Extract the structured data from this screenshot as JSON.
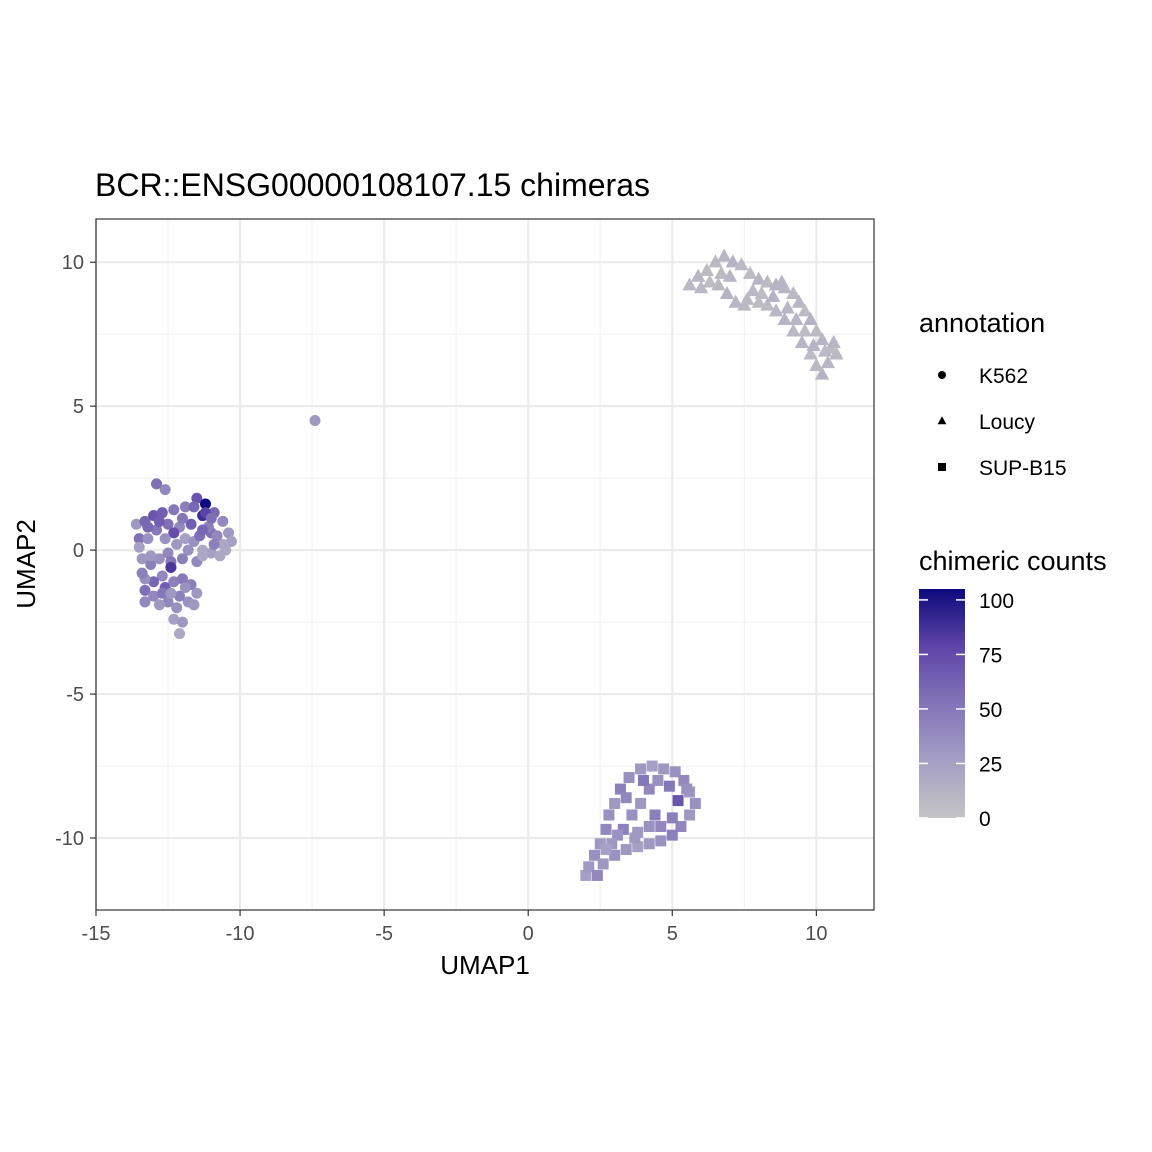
{
  "chart_data": {
    "type": "scatter",
    "title": "BCR::ENSG00000108107.15 chimeras",
    "xlabel": "UMAP1",
    "ylabel": "UMAP2",
    "xlim": [
      -15,
      12
    ],
    "ylim": [
      -12.5,
      11.5
    ],
    "x_ticks": [
      -15,
      -10,
      -5,
      0,
      5,
      10
    ],
    "y_ticks": [
      10,
      5,
      0,
      -5,
      -10
    ],
    "grid": true,
    "legend_position": "right",
    "annotation_legend": {
      "title": "annotation",
      "entries": [
        {
          "label": "K562",
          "shape": "circle"
        },
        {
          "label": "Loucy",
          "shape": "triangle"
        },
        {
          "label": "SUP-B15",
          "shape": "square"
        }
      ]
    },
    "color_legend": {
      "title": "chimeric counts",
      "ticks": [
        100,
        75,
        50,
        25,
        0
      ],
      "range": [
        0,
        105
      ],
      "low_color": "#c4c4c4",
      "high_color": "#0c0a7c"
    },
    "clusters": [
      {
        "annotation": "K562",
        "shape": "circle",
        "count_level": "moderate, up to ~100",
        "points": [
          [
            -13.6,
            0.9
          ],
          [
            -13.5,
            0.4
          ],
          [
            -13.3,
            1.0
          ],
          [
            -13.0,
            1.2
          ],
          [
            -12.7,
            1.3
          ],
          [
            -12.3,
            1.4
          ],
          [
            -11.9,
            1.5
          ],
          [
            -11.5,
            1.8
          ],
          [
            -11.2,
            1.6
          ],
          [
            -10.9,
            1.3
          ],
          [
            -10.6,
            1.0
          ],
          [
            -10.4,
            0.6
          ],
          [
            -10.3,
            0.3
          ],
          [
            -10.6,
            0.2
          ],
          [
            -11.0,
            0.6
          ],
          [
            -11.3,
            1.2
          ],
          [
            -11.7,
            0.9
          ],
          [
            -12.1,
            0.8
          ],
          [
            -12.5,
            0.9
          ],
          [
            -12.9,
            0.7
          ],
          [
            -13.2,
            0.4
          ],
          [
            -13.5,
            0.1
          ],
          [
            -13.4,
            -0.3
          ],
          [
            -13.1,
            -0.5
          ],
          [
            -12.8,
            -0.3
          ],
          [
            -12.5,
            -0.1
          ],
          [
            -12.2,
            0.2
          ],
          [
            -11.9,
            0.4
          ],
          [
            -11.6,
            0.3
          ],
          [
            -11.3,
            0.0
          ],
          [
            -11.0,
            -0.1
          ],
          [
            -10.7,
            -0.2
          ],
          [
            -10.5,
            0.0
          ],
          [
            -11.4,
            0.5
          ],
          [
            -12.0,
            -0.3
          ],
          [
            -12.4,
            -0.6
          ],
          [
            -12.7,
            -0.9
          ],
          [
            -13.0,
            -1.1
          ],
          [
            -13.3,
            -1.0
          ],
          [
            -13.3,
            -1.4
          ],
          [
            -13.0,
            -1.6
          ],
          [
            -12.6,
            -1.3
          ],
          [
            -12.3,
            -1.1
          ],
          [
            -12.0,
            -1.0
          ],
          [
            -11.7,
            -1.2
          ],
          [
            -11.5,
            -1.5
          ],
          [
            -11.8,
            -1.8
          ],
          [
            -12.1,
            -1.6
          ],
          [
            -12.5,
            -1.8
          ],
          [
            -12.8,
            -1.9
          ],
          [
            -12.2,
            -2.0
          ],
          [
            -11.6,
            -1.9
          ],
          [
            -12.3,
            -2.4
          ],
          [
            -12.0,
            -2.5
          ],
          [
            -12.1,
            -2.9
          ],
          [
            -12.9,
            2.3
          ],
          [
            -12.6,
            2.1
          ],
          [
            -11.8,
            0.0
          ],
          [
            -12.4,
            -0.4
          ],
          [
            -13.2,
            0.8
          ],
          [
            -11.1,
            0.8
          ],
          [
            -10.8,
            0.5
          ],
          [
            -12.8,
            1.0
          ],
          [
            -12.3,
            0.6
          ],
          [
            -11.6,
            1.5
          ],
          [
            -11.2,
            1.3
          ],
          [
            -12.4,
            -0.6
          ],
          [
            -13.1,
            -0.2
          ],
          [
            -11.5,
            -0.4
          ],
          [
            -12.7,
            -1.5
          ],
          [
            -11.9,
            -1.3
          ],
          [
            -13.4,
            -0.8
          ],
          [
            -11.0,
            1.1
          ],
          [
            -12.0,
            1.1
          ],
          [
            -12.6,
            0.4
          ],
          [
            -11.3,
            0.7
          ],
          [
            -10.9,
            0.2
          ],
          [
            -13.3,
            -1.8
          ],
          [
            -12.4,
            -1.5
          ],
          [
            -11.3,
            -0.2
          ],
          [
            -7.4,
            4.5
          ]
        ],
        "values": [
          30,
          55,
          60,
          70,
          65,
          50,
          45,
          70,
          105,
          60,
          40,
          30,
          25,
          20,
          55,
          90,
          65,
          40,
          55,
          50,
          35,
          25,
          30,
          45,
          35,
          40,
          30,
          25,
          35,
          20,
          25,
          20,
          20,
          55,
          45,
          75,
          40,
          60,
          35,
          55,
          40,
          65,
          45,
          50,
          45,
          30,
          35,
          45,
          40,
          30,
          35,
          30,
          25,
          30,
          20,
          55,
          40,
          35,
          50,
          60,
          45,
          40,
          65,
          75,
          60,
          80,
          85,
          30,
          40,
          50,
          35,
          45,
          55,
          50,
          35,
          60,
          45,
          40,
          30,
          20,
          30
        ]
      },
      {
        "annotation": "Loucy",
        "shape": "triangle",
        "count_level": "low",
        "points": [
          [
            5.6,
            9.2
          ],
          [
            5.9,
            9.5
          ],
          [
            6.2,
            9.7
          ],
          [
            6.5,
            10.0
          ],
          [
            6.8,
            10.2
          ],
          [
            7.1,
            10.0
          ],
          [
            7.4,
            9.9
          ],
          [
            7.7,
            9.6
          ],
          [
            8.0,
            9.4
          ],
          [
            8.3,
            9.3
          ],
          [
            8.6,
            9.2
          ],
          [
            8.9,
            9.1
          ],
          [
            9.2,
            8.9
          ],
          [
            9.4,
            8.6
          ],
          [
            9.6,
            8.3
          ],
          [
            9.8,
            8.0
          ],
          [
            10.0,
            7.6
          ],
          [
            10.2,
            7.3
          ],
          [
            10.5,
            7.0
          ],
          [
            10.7,
            6.8
          ],
          [
            10.4,
            6.5
          ],
          [
            10.2,
            6.1
          ],
          [
            10.0,
            6.4
          ],
          [
            9.8,
            6.8
          ],
          [
            9.5,
            7.2
          ],
          [
            9.2,
            7.6
          ],
          [
            8.9,
            8.0
          ],
          [
            8.6,
            8.3
          ],
          [
            8.3,
            8.5
          ],
          [
            8.0,
            8.6
          ],
          [
            7.6,
            8.7
          ],
          [
            7.2,
            8.6
          ],
          [
            6.9,
            8.9
          ],
          [
            6.6,
            9.2
          ],
          [
            6.3,
            9.3
          ],
          [
            6.0,
            9.1
          ],
          [
            7.0,
            9.5
          ],
          [
            7.8,
            9.0
          ],
          [
            8.5,
            8.8
          ],
          [
            9.0,
            8.4
          ],
          [
            9.6,
            7.6
          ],
          [
            10.3,
            6.9
          ],
          [
            10.6,
            7.2
          ],
          [
            7.5,
            8.5
          ],
          [
            8.1,
            8.9
          ],
          [
            9.3,
            8.0
          ],
          [
            9.9,
            7.1
          ],
          [
            6.7,
            9.6
          ],
          [
            8.8,
            9.3
          ]
        ],
        "values": [
          8,
          10,
          6,
          8,
          10,
          12,
          8,
          6,
          10,
          8,
          12,
          10,
          8,
          10,
          6,
          12,
          8,
          10,
          6,
          8,
          10,
          12,
          8,
          6,
          10,
          8,
          12,
          10,
          8,
          6,
          8,
          10,
          12,
          8,
          6,
          8,
          10,
          8,
          12,
          10,
          6,
          8,
          10,
          8,
          6,
          10,
          12,
          8,
          10
        ]
      },
      {
        "annotation": "SUP-B15",
        "shape": "square",
        "count_level": "low to moderate",
        "points": [
          [
            2.0,
            -11.3
          ],
          [
            2.1,
            -11.0
          ],
          [
            2.3,
            -10.6
          ],
          [
            2.5,
            -10.2
          ],
          [
            2.7,
            -9.7
          ],
          [
            2.8,
            -9.2
          ],
          [
            3.0,
            -8.8
          ],
          [
            3.2,
            -8.3
          ],
          [
            3.5,
            -7.9
          ],
          [
            3.9,
            -7.6
          ],
          [
            4.3,
            -7.5
          ],
          [
            4.7,
            -7.6
          ],
          [
            5.1,
            -7.7
          ],
          [
            5.4,
            -8.0
          ],
          [
            5.6,
            -8.4
          ],
          [
            5.8,
            -8.8
          ],
          [
            5.6,
            -9.2
          ],
          [
            5.3,
            -9.6
          ],
          [
            5.0,
            -9.9
          ],
          [
            4.6,
            -10.1
          ],
          [
            4.2,
            -10.2
          ],
          [
            3.8,
            -10.3
          ],
          [
            3.4,
            -10.4
          ],
          [
            3.0,
            -10.6
          ],
          [
            2.6,
            -10.9
          ],
          [
            2.4,
            -11.3
          ],
          [
            3.3,
            -9.7
          ],
          [
            3.6,
            -9.2
          ],
          [
            3.9,
            -8.8
          ],
          [
            4.2,
            -8.3
          ],
          [
            4.5,
            -8.0
          ],
          [
            4.9,
            -8.2
          ],
          [
            5.2,
            -8.7
          ],
          [
            5.0,
            -9.3
          ],
          [
            4.6,
            -9.6
          ],
          [
            4.2,
            -9.6
          ],
          [
            3.8,
            -9.8
          ],
          [
            3.1,
            -9.9
          ],
          [
            2.9,
            -10.2
          ],
          [
            4.0,
            -8.0
          ],
          [
            3.4,
            -8.6
          ],
          [
            5.5,
            -8.3
          ],
          [
            4.4,
            -9.2
          ],
          [
            3.7,
            -10.0
          ],
          [
            2.7,
            -10.4
          ]
        ],
        "values": [
          25,
          30,
          35,
          30,
          40,
          35,
          30,
          45,
          35,
          30,
          25,
          30,
          35,
          40,
          30,
          35,
          30,
          40,
          45,
          35,
          30,
          25,
          30,
          35,
          30,
          40,
          45,
          35,
          30,
          40,
          35,
          50,
          70,
          45,
          40,
          35,
          30,
          35,
          30,
          50,
          40,
          35,
          45,
          30,
          25
        ]
      }
    ]
  }
}
